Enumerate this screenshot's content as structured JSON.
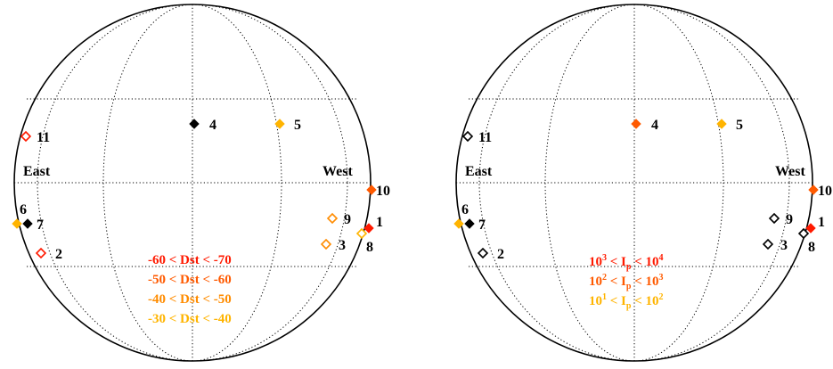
{
  "colors": {
    "black": "#000000",
    "red": "#ff1a00",
    "orange_red": "#ff5a00",
    "orange": "#ff8c00",
    "gold": "#ffb400"
  },
  "panels": [
    {
      "east_label": "East",
      "west_label": "West",
      "legend": [
        {
          "text": "-60 < Dst < -70",
          "color": "#ff1a00"
        },
        {
          "text": "-50 < Dst < -60",
          "color": "#ff5a00"
        },
        {
          "text": "-40 < Dst < -50",
          "color": "#ff8c00"
        },
        {
          "text": "-30 < Dst < -40",
          "color": "#ffb400"
        }
      ],
      "events": [
        {
          "id": "1",
          "style": "filled",
          "color": "#ff1a00"
        },
        {
          "id": "2",
          "style": "open",
          "color": "#ff1a00"
        },
        {
          "id": "3",
          "style": "open",
          "color": "#ff8c00"
        },
        {
          "id": "4",
          "style": "filled",
          "color": "#000000"
        },
        {
          "id": "5",
          "style": "filled",
          "color": "#ffb400"
        },
        {
          "id": "6",
          "style": "filled",
          "color": "#ffb400"
        },
        {
          "id": "7",
          "style": "filled",
          "color": "#000000"
        },
        {
          "id": "8",
          "style": "open",
          "color": "#ffb400"
        },
        {
          "id": "9",
          "style": "open",
          "color": "#ff8c00"
        },
        {
          "id": "10",
          "style": "filled",
          "color": "#ff5a00"
        },
        {
          "id": "11",
          "style": "open",
          "color": "#ff1a00"
        }
      ]
    },
    {
      "east_label": "East",
      "west_label": "West",
      "legend": [
        {
          "base": "10",
          "exp1": "3",
          "mid": " < I",
          "sub": "p",
          "mid2": " < 10",
          "exp2": "4",
          "color": "#ff1a00"
        },
        {
          "base": "10",
          "exp1": "2",
          "mid": " < I",
          "sub": "p",
          "mid2": " < 10",
          "exp2": "3",
          "color": "#ff5a00"
        },
        {
          "base": "10",
          "exp1": "1",
          "mid": " < I",
          "sub": "p",
          "mid2": " < 10",
          "exp2": "2",
          "color": "#ffb400"
        }
      ],
      "events": [
        {
          "id": "1",
          "style": "filled",
          "color": "#ff1a00"
        },
        {
          "id": "2",
          "style": "open",
          "color": "#000000"
        },
        {
          "id": "3",
          "style": "open",
          "color": "#000000"
        },
        {
          "id": "4",
          "style": "filled",
          "color": "#ff5a00"
        },
        {
          "id": "5",
          "style": "filled",
          "color": "#ffb400"
        },
        {
          "id": "6",
          "style": "filled",
          "color": "#ffb400"
        },
        {
          "id": "7",
          "style": "filled",
          "color": "#000000"
        },
        {
          "id": "8",
          "style": "open",
          "color": "#000000"
        },
        {
          "id": "9",
          "style": "open",
          "color": "#000000"
        },
        {
          "id": "10",
          "style": "filled",
          "color": "#ff5a00"
        },
        {
          "id": "11",
          "style": "open",
          "color": "#000000"
        }
      ]
    }
  ]
}
